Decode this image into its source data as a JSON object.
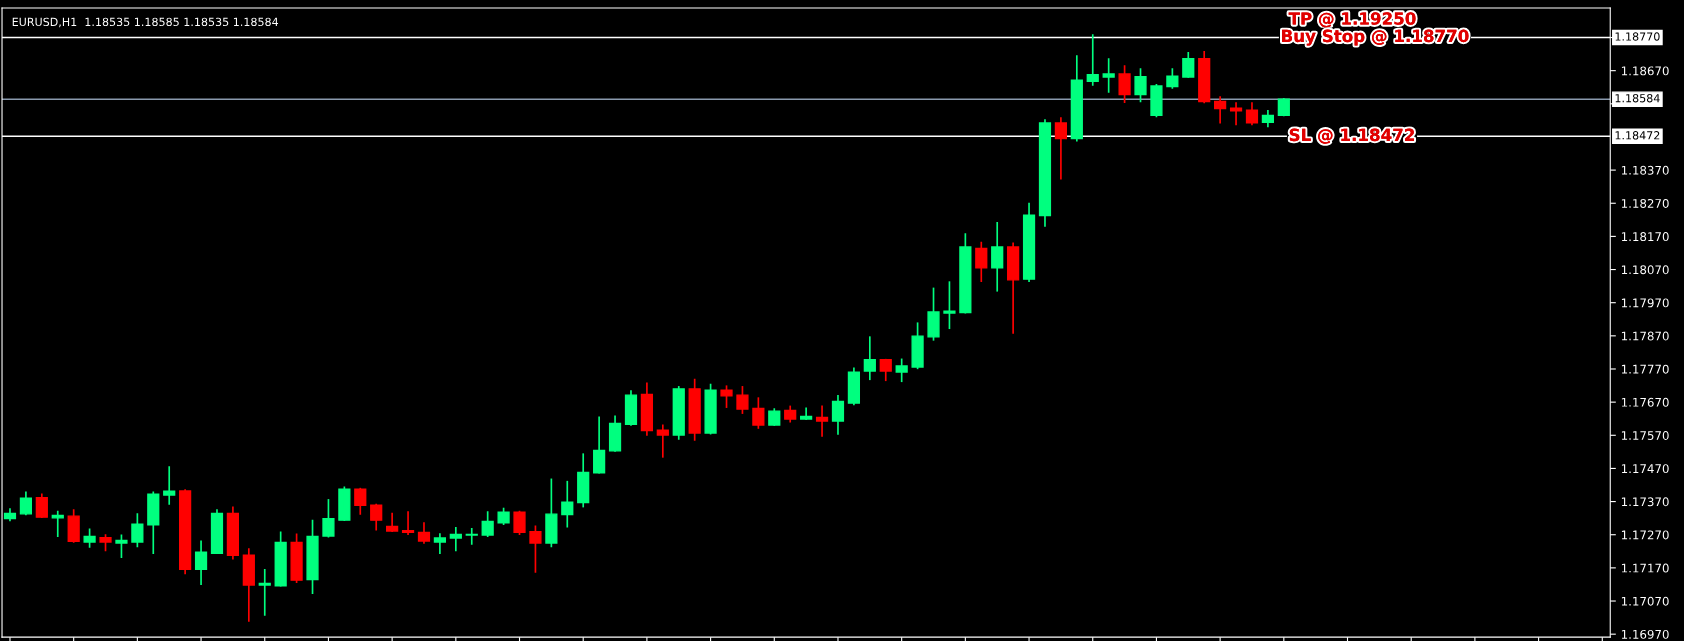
{
  "chart_data": {
    "type": "candlestick",
    "title": "EURUSD,H1  1.18535 1.18585 1.18535 1.18584",
    "categories": [
      null,
      null,
      null,
      null,
      null,
      null,
      null,
      null,
      null,
      null,
      null,
      null,
      null,
      null,
      null,
      null,
      null,
      null,
      null,
      null,
      null,
      null,
      null,
      null,
      null,
      null,
      null,
      null,
      null,
      null,
      null,
      null,
      null,
      null,
      null,
      null,
      null,
      null,
      null,
      null,
      null,
      null,
      null,
      null,
      null,
      null,
      null,
      null,
      null,
      null,
      null,
      null,
      null,
      null,
      null,
      null,
      null,
      null,
      null,
      null,
      null,
      null,
      null,
      null,
      null,
      null,
      null,
      null,
      null,
      null,
      null,
      null,
      null,
      null,
      null,
      null,
      null,
      null,
      null,
      null,
      null,
      null,
      null,
      null,
      null,
      null,
      null,
      null,
      null,
      null,
      null,
      null,
      null,
      null,
      null,
      null,
      null,
      null,
      null,
      null,
      null
    ],
    "ohlc": [
      [
        1.17319,
        1.17347,
        1.17313,
        1.17334
      ],
      [
        1.17333,
        1.17398,
        1.17331,
        1.1738
      ],
      [
        1.17382,
        1.17392,
        1.17323,
        1.17323
      ],
      [
        1.17321,
        1.1734,
        1.17266,
        1.17328
      ],
      [
        1.17326,
        1.17344,
        1.17248,
        1.1725
      ],
      [
        1.17248,
        1.17286,
        1.17233,
        1.17265
      ],
      [
        1.17261,
        1.17269,
        1.17223,
        1.17248
      ],
      [
        1.17245,
        1.17268,
        1.17202,
        1.17253
      ],
      [
        1.17248,
        1.17332,
        1.17235,
        1.17302
      ],
      [
        1.173,
        1.17398,
        1.17214,
        1.17392
      ],
      [
        1.1739,
        1.17474,
        1.17363,
        1.17401
      ],
      [
        1.17402,
        1.17405,
        1.17153,
        1.17166
      ],
      [
        1.17166,
        1.1725,
        1.17121,
        1.17217
      ],
      [
        1.17214,
        1.17344,
        1.17214,
        1.17334
      ],
      [
        1.17334,
        1.17353,
        1.17198,
        1.17208
      ],
      [
        1.17208,
        1.17227,
        1.1701,
        1.17118
      ],
      [
        1.17118,
        1.17164,
        1.17028,
        1.17123
      ],
      [
        1.17116,
        1.17277,
        1.17116,
        1.17247
      ],
      [
        1.17247,
        1.17271,
        1.17127,
        1.17133
      ],
      [
        1.17135,
        1.17313,
        1.17094,
        1.17265
      ],
      [
        1.17266,
        1.17375,
        1.17264,
        1.17318
      ],
      [
        1.17314,
        1.17413,
        1.17314,
        1.17407
      ],
      [
        1.17407,
        1.17409,
        1.17333,
        1.17359
      ],
      [
        1.17359,
        1.17361,
        1.17285,
        1.17314
      ],
      [
        1.17295,
        1.17334,
        1.17281,
        1.17281
      ],
      [
        1.17282,
        1.17338,
        1.17272,
        1.17277
      ],
      [
        1.17277,
        1.17305,
        1.17245,
        1.17251
      ],
      [
        1.17248,
        1.17272,
        1.17214,
        1.1726
      ],
      [
        1.1726,
        1.17291,
        1.17223,
        1.17271
      ],
      [
        1.17269,
        1.17288,
        1.17242,
        1.17271
      ],
      [
        1.17269,
        1.17338,
        1.17266,
        1.1731
      ],
      [
        1.17306,
        1.17349,
        1.17302,
        1.17338
      ],
      [
        1.17338,
        1.1734,
        1.17272,
        1.17277
      ],
      [
        1.17279,
        1.17295,
        1.17158,
        1.17245
      ],
      [
        1.17245,
        1.17437,
        1.17235,
        1.17332
      ],
      [
        1.17331,
        1.1743,
        1.17294,
        1.17368
      ],
      [
        1.17367,
        1.17513,
        1.17355,
        1.17458
      ],
      [
        1.17457,
        1.17624,
        1.17457,
        1.17524
      ],
      [
        1.17523,
        1.17627,
        1.17523,
        1.17606
      ],
      [
        1.17603,
        1.17703,
        1.17601,
        1.17691
      ],
      [
        1.17693,
        1.17727,
        1.17571,
        1.17584
      ],
      [
        1.17585,
        1.176,
        1.17505,
        1.17571
      ],
      [
        1.17571,
        1.17716,
        1.17559,
        1.1771
      ],
      [
        1.1771,
        1.17738,
        1.17556,
        1.17577
      ],
      [
        1.17577,
        1.17723,
        1.17575,
        1.17706
      ],
      [
        1.17706,
        1.17718,
        1.17655,
        1.17689
      ],
      [
        1.17691,
        1.17716,
        1.17637,
        1.17649
      ],
      [
        1.17651,
        1.17682,
        1.17592,
        1.17601
      ],
      [
        1.17601,
        1.17649,
        1.17601,
        1.17643
      ],
      [
        1.17645,
        1.17657,
        1.17611,
        1.17619
      ],
      [
        1.17619,
        1.17651,
        1.17619,
        1.17627
      ],
      [
        1.17624,
        1.17657,
        1.17568,
        1.17613
      ],
      [
        1.17613,
        1.17689,
        1.17574,
        1.17672
      ],
      [
        1.17667,
        1.17772,
        1.17663,
        1.1776
      ],
      [
        1.17764,
        1.17866,
        1.17739,
        1.17798
      ],
      [
        1.17798,
        1.17798,
        1.17736,
        1.17764
      ],
      [
        1.17761,
        1.17799,
        1.17733,
        1.17779
      ],
      [
        1.17776,
        1.17908,
        1.17772,
        1.17869
      ],
      [
        1.17867,
        1.18013,
        1.17858,
        1.17942
      ],
      [
        1.17939,
        1.18032,
        1.17893,
        1.17944
      ],
      [
        1.1794,
        1.18177,
        1.1794,
        1.18138
      ],
      [
        1.18134,
        1.18151,
        1.18035,
        1.18075
      ],
      [
        1.18075,
        1.18211,
        1.18006,
        1.18138
      ],
      [
        1.18138,
        1.18149,
        1.17879,
        1.18039
      ],
      [
        1.18041,
        1.18269,
        1.18035,
        1.18234
      ],
      [
        1.18233,
        1.18521,
        1.18202,
        1.18512
      ],
      [
        1.18512,
        1.18527,
        1.18344,
        1.18465
      ],
      [
        1.18465,
        1.18714,
        1.18459,
        1.18641
      ],
      [
        1.18638,
        1.18777,
        1.18627,
        1.18658
      ],
      [
        1.18651,
        1.18705,
        1.18606,
        1.1866
      ],
      [
        1.1866,
        1.18684,
        1.18575,
        1.18598
      ],
      [
        1.18598,
        1.18675,
        1.18577,
        1.18652
      ],
      [
        1.18535,
        1.18627,
        1.18532,
        1.18624
      ],
      [
        1.18622,
        1.18675,
        1.18618,
        1.18653
      ],
      [
        1.18651,
        1.18724,
        1.18651,
        1.18706
      ],
      [
        1.18706,
        1.18727,
        1.18574,
        1.18577
      ],
      [
        1.18577,
        1.1859,
        1.18513,
        1.18556
      ],
      [
        1.18557,
        1.18572,
        1.18508,
        1.18549
      ],
      [
        1.18551,
        1.18572,
        1.18508,
        1.18513
      ],
      [
        1.18514,
        1.18549,
        1.18502,
        1.18535
      ],
      [
        1.18535,
        1.18585,
        1.18535,
        1.18584
      ],
      null,
      null,
      null,
      null,
      null,
      null,
      null,
      null,
      null,
      null,
      null,
      null,
      null,
      null,
      null,
      null,
      null,
      null,
      null,
      null
    ],
    "colors": [
      "#00ff7f",
      "#00ff7f",
      "#ff0000",
      "#00ff7f",
      "#ff0000",
      "#00ff7f",
      "#ff0000",
      "#00ff7f",
      "#00ff7f",
      "#00ff7f",
      "#00ff7f",
      "#ff0000",
      "#00ff7f",
      "#00ff7f",
      "#ff0000",
      "#ff0000",
      "#00ff7f",
      "#00ff7f",
      "#ff0000",
      "#00ff7f",
      "#00ff7f",
      "#00ff7f",
      "#ff0000",
      "#ff0000",
      "#ff0000",
      "#ff0000",
      "#ff0000",
      "#00ff7f",
      "#00ff7f",
      "#00ff7f",
      "#00ff7f",
      "#00ff7f",
      "#ff0000",
      "#ff0000",
      "#00ff7f",
      "#00ff7f",
      "#00ff7f",
      "#00ff7f",
      "#00ff7f",
      "#00ff7f",
      "#ff0000",
      "#ff0000",
      "#00ff7f",
      "#ff0000",
      "#00ff7f",
      "#ff0000",
      "#ff0000",
      "#ff0000",
      "#00ff7f",
      "#ff0000",
      "#00ff7f",
      "#ff0000",
      "#00ff7f",
      "#00ff7f",
      "#00ff7f",
      "#ff0000",
      "#00ff7f",
      "#00ff7f",
      "#00ff7f",
      "#00ff7f",
      "#00ff7f",
      "#ff0000",
      "#00ff7f",
      "#ff0000",
      "#00ff7f",
      "#00ff7f",
      "#ff0000",
      "#00ff7f",
      "#00ff7f",
      "#00ff7f",
      "#ff0000",
      "#00ff7f",
      "#00ff7f",
      "#00ff7f",
      "#00ff7f",
      "#ff0000",
      "#ff0000",
      "#ff0000",
      "#ff0000",
      "#00ff7f",
      "#00ff7f",
      null,
      null,
      null,
      null,
      null,
      null,
      null,
      null,
      null,
      null,
      null,
      null,
      null,
      null,
      null,
      null,
      null,
      null,
      null,
      null
    ],
    "ylim": [
      1.16961,
      1.18859
    ],
    "yticks": [
      {
        "value": 1.1697,
        "label": "1.16970"
      },
      {
        "value": 1.1707,
        "label": "1.17070"
      },
      {
        "value": 1.1717,
        "label": "1.17170"
      },
      {
        "value": 1.1727,
        "label": "1.17270"
      },
      {
        "value": 1.1737,
        "label": "1.17370"
      },
      {
        "value": 1.1747,
        "label": "1.17470"
      },
      {
        "value": 1.1757,
        "label": "1.17570"
      },
      {
        "value": 1.1767,
        "label": "1.17670"
      },
      {
        "value": 1.1777,
        "label": "1.17770"
      },
      {
        "value": 1.1787,
        "label": "1.17870"
      },
      {
        "value": 1.1797,
        "label": "1.17970"
      },
      {
        "value": 1.1807,
        "label": "1.18070"
      },
      {
        "value": 1.1817,
        "label": "1.18170"
      },
      {
        "value": 1.1827,
        "label": "1.18270"
      },
      {
        "value": 1.1837,
        "label": "1.18370"
      },
      {
        "value": 1.1857,
        "label": null
      },
      {
        "value": 1.1867,
        "label": "1.18670"
      },
      {
        "value": 1.1877,
        "label": null
      }
    ],
    "ref_lines": [
      {
        "axis": "y",
        "value": 1.1877,
        "label": "1.18770",
        "color": "#ffffff"
      },
      {
        "axis": "y",
        "value": 1.18584,
        "label": "1.18584",
        "color": "#8a9aae"
      },
      {
        "axis": "y",
        "value": 1.18472,
        "label": "1.18472",
        "color": "#ffffff"
      }
    ],
    "annotations": [
      "TP @ 1.19250",
      {
        "text": "Buy Stop @ 1.18770",
        "y": 1.1877
      },
      {
        "text": "SL @ 1.18472",
        "y": 1.18472
      }
    ],
    "grid": false,
    "tick_labels": "y"
  }
}
